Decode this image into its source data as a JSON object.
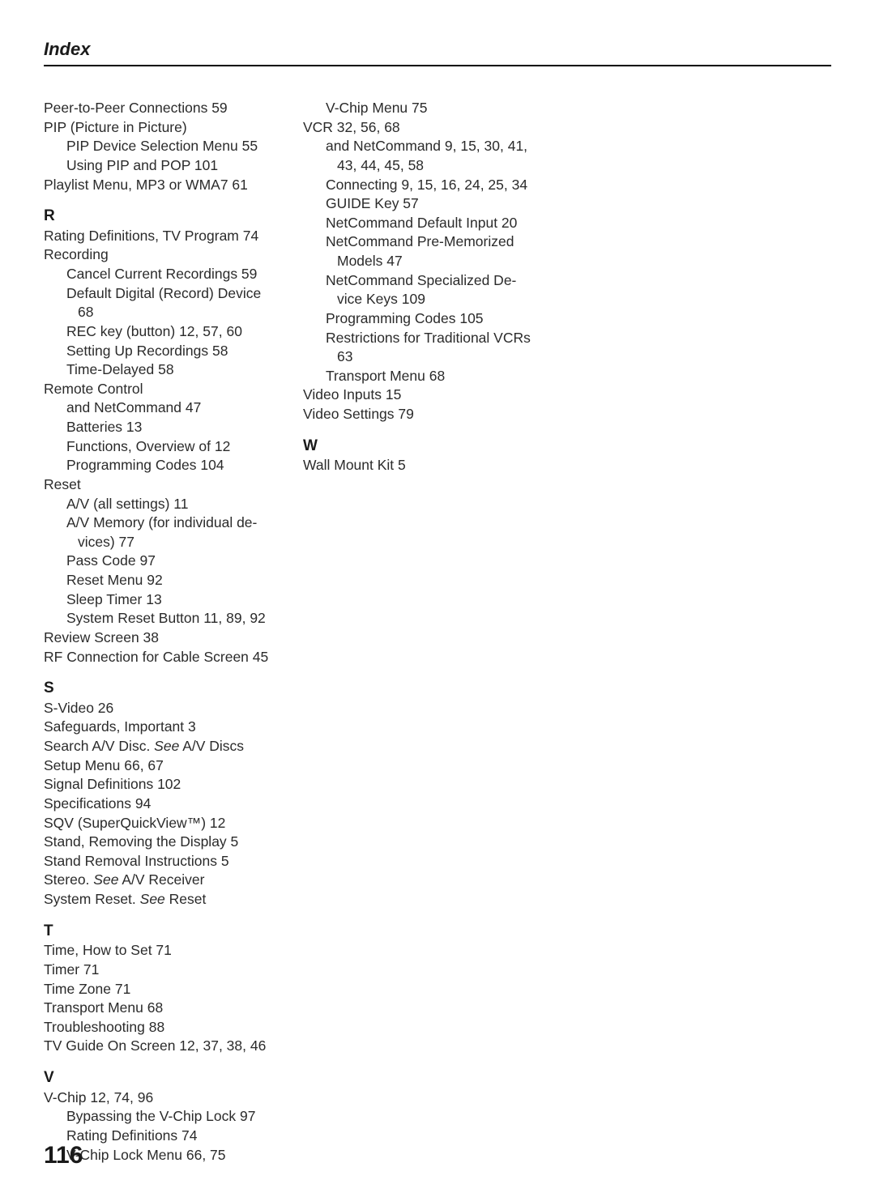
{
  "header": {
    "title": "Index"
  },
  "page_number": "116",
  "columns": [
    [
      {
        "cls": "entry",
        "text": "Peer-to-Peer Connections  59"
      },
      {
        "cls": "entry",
        "text": "PIP (Picture in Picture)"
      },
      {
        "cls": "sub",
        "text": "PIP Device Selection Menu  55"
      },
      {
        "cls": "sub",
        "text": "Using PIP and POP  101"
      },
      {
        "cls": "entry",
        "text": "Playlist Menu, MP3 or WMA7  61"
      },
      {
        "cls": "section-letter",
        "text": "R"
      },
      {
        "cls": "entry",
        "text": "Rating Definitions, TV Program  74"
      },
      {
        "cls": "entry",
        "text": "Recording"
      },
      {
        "cls": "sub",
        "text": "Cancel Current Recordings  59"
      },
      {
        "cls": "sub",
        "text": "Default Digital (Record) Device"
      },
      {
        "cls": "sub2",
        "text": "68"
      },
      {
        "cls": "sub",
        "text": "REC key (button)  12, 57, 60"
      },
      {
        "cls": "sub",
        "text": "Setting Up Recordings  58"
      },
      {
        "cls": "sub",
        "text": "Time-Delayed  58"
      },
      {
        "cls": "entry",
        "text": "Remote Control"
      },
      {
        "cls": "sub",
        "text": "and NetCommand  47"
      },
      {
        "cls": "sub",
        "text": "Batteries  13"
      },
      {
        "cls": "sub",
        "text": "Functions, Overview of  12"
      },
      {
        "cls": "sub",
        "text": "Programming Codes  104"
      },
      {
        "cls": "entry",
        "text": "Reset"
      },
      {
        "cls": "sub",
        "text": "A/V (all settings)  11"
      },
      {
        "cls": "sub",
        "text": "A/V Memory (for individual de-"
      },
      {
        "cls": "sub2",
        "text": "vices)  77"
      },
      {
        "cls": "sub",
        "text": "Pass Code  97"
      },
      {
        "cls": "sub",
        "text": "Reset Menu  92"
      },
      {
        "cls": "sub",
        "text": "Sleep Timer  13"
      },
      {
        "cls": "sub",
        "text": "System Reset Button  11, 89, 92"
      },
      {
        "cls": "entry",
        "text": "Review Screen  38"
      },
      {
        "cls": "entry",
        "text": "RF Connection for Cable Screen  45"
      },
      {
        "cls": "section-letter",
        "text": "S"
      },
      {
        "cls": "entry",
        "text": "S-Video  26"
      },
      {
        "cls": "entry",
        "text": "Safeguards, Important  3"
      },
      {
        "cls": "entry",
        "parts": [
          {
            "text": "Search A/V Disc. "
          },
          {
            "text": "See",
            "italic": true
          },
          {
            "text": " A/V Discs"
          }
        ]
      },
      {
        "cls": "entry",
        "text": "Setup Menu  66, 67"
      },
      {
        "cls": "entry",
        "text": "Signal Definitions  102"
      },
      {
        "cls": "entry",
        "text": "Specifications  94"
      },
      {
        "cls": "entry",
        "text": "SQV (SuperQuickView™)  12"
      },
      {
        "cls": "entry",
        "text": "Stand, Removing the Display  5"
      },
      {
        "cls": "entry",
        "text": "Stand Removal Instructions  5"
      },
      {
        "cls": "entry",
        "parts": [
          {
            "text": "Stereo. "
          },
          {
            "text": "See",
            "italic": true
          },
          {
            "text": " A/V Receiver"
          }
        ]
      },
      {
        "cls": "entry",
        "parts": [
          {
            "text": "System Reset. "
          },
          {
            "text": "See",
            "italic": true
          },
          {
            "text": " Reset"
          }
        ]
      },
      {
        "cls": "section-letter",
        "text": "T"
      },
      {
        "cls": "entry",
        "text": "Time, How to Set  71"
      },
      {
        "cls": "entry",
        "text": "Timer  71"
      },
      {
        "cls": "entry",
        "text": "Time Zone  71"
      },
      {
        "cls": "entry",
        "text": "Transport Menu  68"
      },
      {
        "cls": "entry",
        "text": "Troubleshooting  88"
      },
      {
        "cls": "entry",
        "text": "TV Guide On Screen  12, 37, 38, 46"
      },
      {
        "cls": "section-letter",
        "text": "V"
      },
      {
        "cls": "entry",
        "text": "V-Chip  12, 74, 96"
      },
      {
        "cls": "sub",
        "text": "Bypassing the V-Chip Lock  97"
      },
      {
        "cls": "sub",
        "text": "Rating Definitions  74"
      },
      {
        "cls": "sub",
        "text": "V-Chip Lock Menu  66, 75"
      }
    ],
    [
      {
        "cls": "sub",
        "text": "V-Chip Menu  75"
      },
      {
        "cls": "entry",
        "text": "VCR  32, 56, 68"
      },
      {
        "cls": "sub",
        "text": "and NetCommand  9, 15, 30, 41,"
      },
      {
        "cls": "sub2",
        "text": "43, 44, 45, 58"
      },
      {
        "cls": "sub",
        "text": "Connecting  9, 15, 16, 24, 25, 34"
      },
      {
        "cls": "sub",
        "text": "GUIDE Key  57"
      },
      {
        "cls": "sub",
        "text": "NetCommand Default Input  20"
      },
      {
        "cls": "sub",
        "text": "NetCommand Pre-Memorized"
      },
      {
        "cls": "sub2",
        "text": "Models  47"
      },
      {
        "cls": "sub",
        "text": "NetCommand Specialized De-"
      },
      {
        "cls": "sub2",
        "text": "vice Keys  109"
      },
      {
        "cls": "sub",
        "text": "Programming Codes  105"
      },
      {
        "cls": "sub",
        "text": "Restrictions for Traditional VCRs"
      },
      {
        "cls": "sub2",
        "text": "63"
      },
      {
        "cls": "sub",
        "text": "Transport Menu  68"
      },
      {
        "cls": "entry",
        "text": "Video Inputs  15"
      },
      {
        "cls": "entry",
        "text": "Video Settings  79"
      },
      {
        "cls": "section-letter",
        "text": "W"
      },
      {
        "cls": "entry",
        "text": "Wall Mount Kit  5"
      }
    ]
  ]
}
